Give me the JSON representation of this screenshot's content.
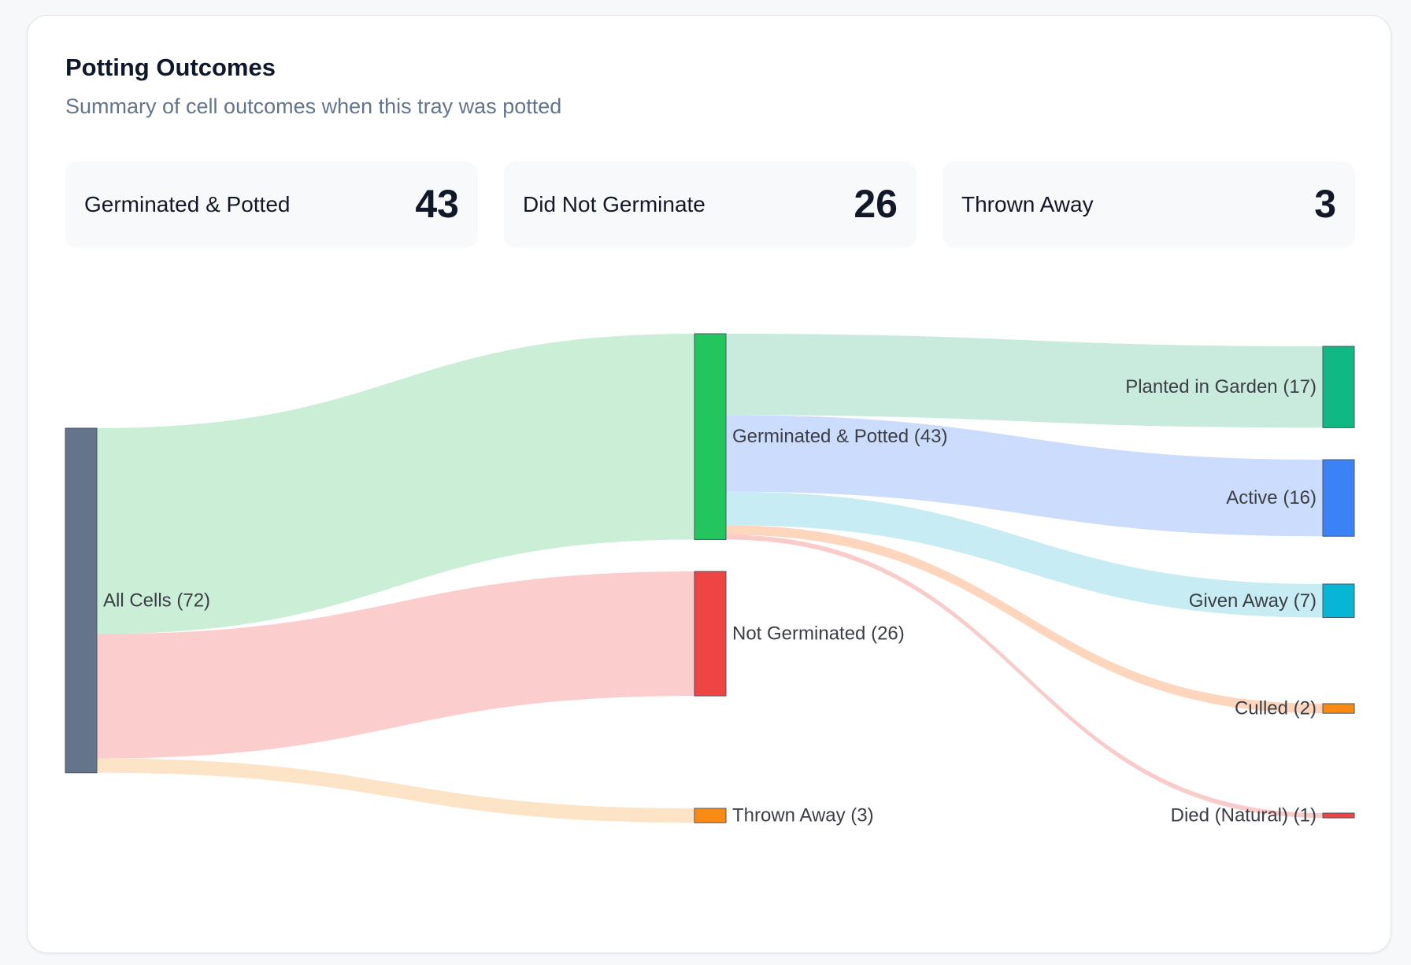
{
  "card": {
    "title": "Potting Outcomes",
    "subtitle": "Summary of cell outcomes when this tray was potted"
  },
  "stats": [
    {
      "label": "Germinated & Potted",
      "value": "43"
    },
    {
      "label": "Did Not Germinate",
      "value": "26"
    },
    {
      "label": "Thrown Away",
      "value": "3"
    }
  ],
  "chart_data": {
    "type": "sankey",
    "nodes": [
      {
        "id": "all",
        "label": "All Cells (72)",
        "value": 72,
        "color": "#64748b"
      },
      {
        "id": "germ",
        "label": "Germinated & Potted (43)",
        "value": 43,
        "color": "#22c55e"
      },
      {
        "id": "notgerm",
        "label": "Not Germinated (26)",
        "value": 26,
        "color": "#ef4444"
      },
      {
        "id": "thrown",
        "label": "Thrown Away (3)",
        "value": 3,
        "color": "#f98a14"
      },
      {
        "id": "garden",
        "label": "Planted in Garden (17)",
        "value": 17,
        "color": "#10b981"
      },
      {
        "id": "active",
        "label": "Active (16)",
        "value": 16,
        "color": "#3b82f6"
      },
      {
        "id": "given",
        "label": "Given Away (7)",
        "value": 7,
        "color": "#06b6d4"
      },
      {
        "id": "culled",
        "label": "Culled (2)",
        "value": 2,
        "color": "#f98a14"
      },
      {
        "id": "died",
        "label": "Died (Natural) (1)",
        "value": 1,
        "color": "#ef4444"
      }
    ],
    "links": [
      {
        "source": "all",
        "target": "germ",
        "value": 43,
        "color": "#c7eed4"
      },
      {
        "source": "all",
        "target": "notgerm",
        "value": 26,
        "color": "#fbcaca"
      },
      {
        "source": "all",
        "target": "thrown",
        "value": 3,
        "color": "#fde3c4"
      },
      {
        "source": "germ",
        "target": "garden",
        "value": 17,
        "color": "#c5eadb"
      },
      {
        "source": "germ",
        "target": "active",
        "value": 16,
        "color": "#c8dafd"
      },
      {
        "source": "germ",
        "target": "given",
        "value": 7,
        "color": "#c5ebf2"
      },
      {
        "source": "germ",
        "target": "culled",
        "value": 2,
        "color": "#fed3b9"
      },
      {
        "source": "germ",
        "target": "died",
        "value": 1,
        "color": "#f9c8c8"
      }
    ]
  }
}
